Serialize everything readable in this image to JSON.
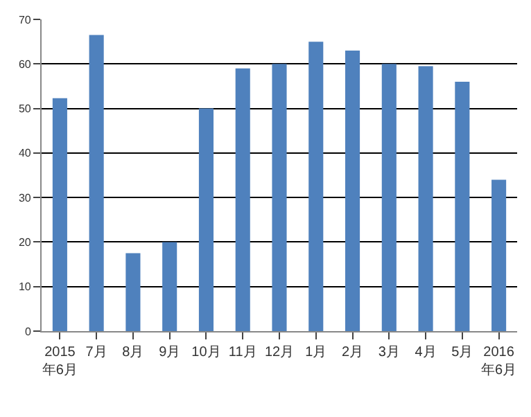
{
  "chart_data": {
    "type": "bar",
    "categories": [
      "2015年6月",
      "7月",
      "8月",
      "9月",
      "10月",
      "11月",
      "12月",
      "1月",
      "2月",
      "3月",
      "4月",
      "5月",
      "2016年6月"
    ],
    "values": [
      52.3,
      66.5,
      17.5,
      20,
      50,
      59,
      60,
      65,
      63,
      60,
      59.5,
      56,
      34
    ],
    "color": "#4f81bd",
    "ylim": [
      0,
      70
    ],
    "yticks": [
      0,
      10,
      20,
      30,
      40,
      50,
      60,
      70
    ],
    "grid": "y"
  }
}
